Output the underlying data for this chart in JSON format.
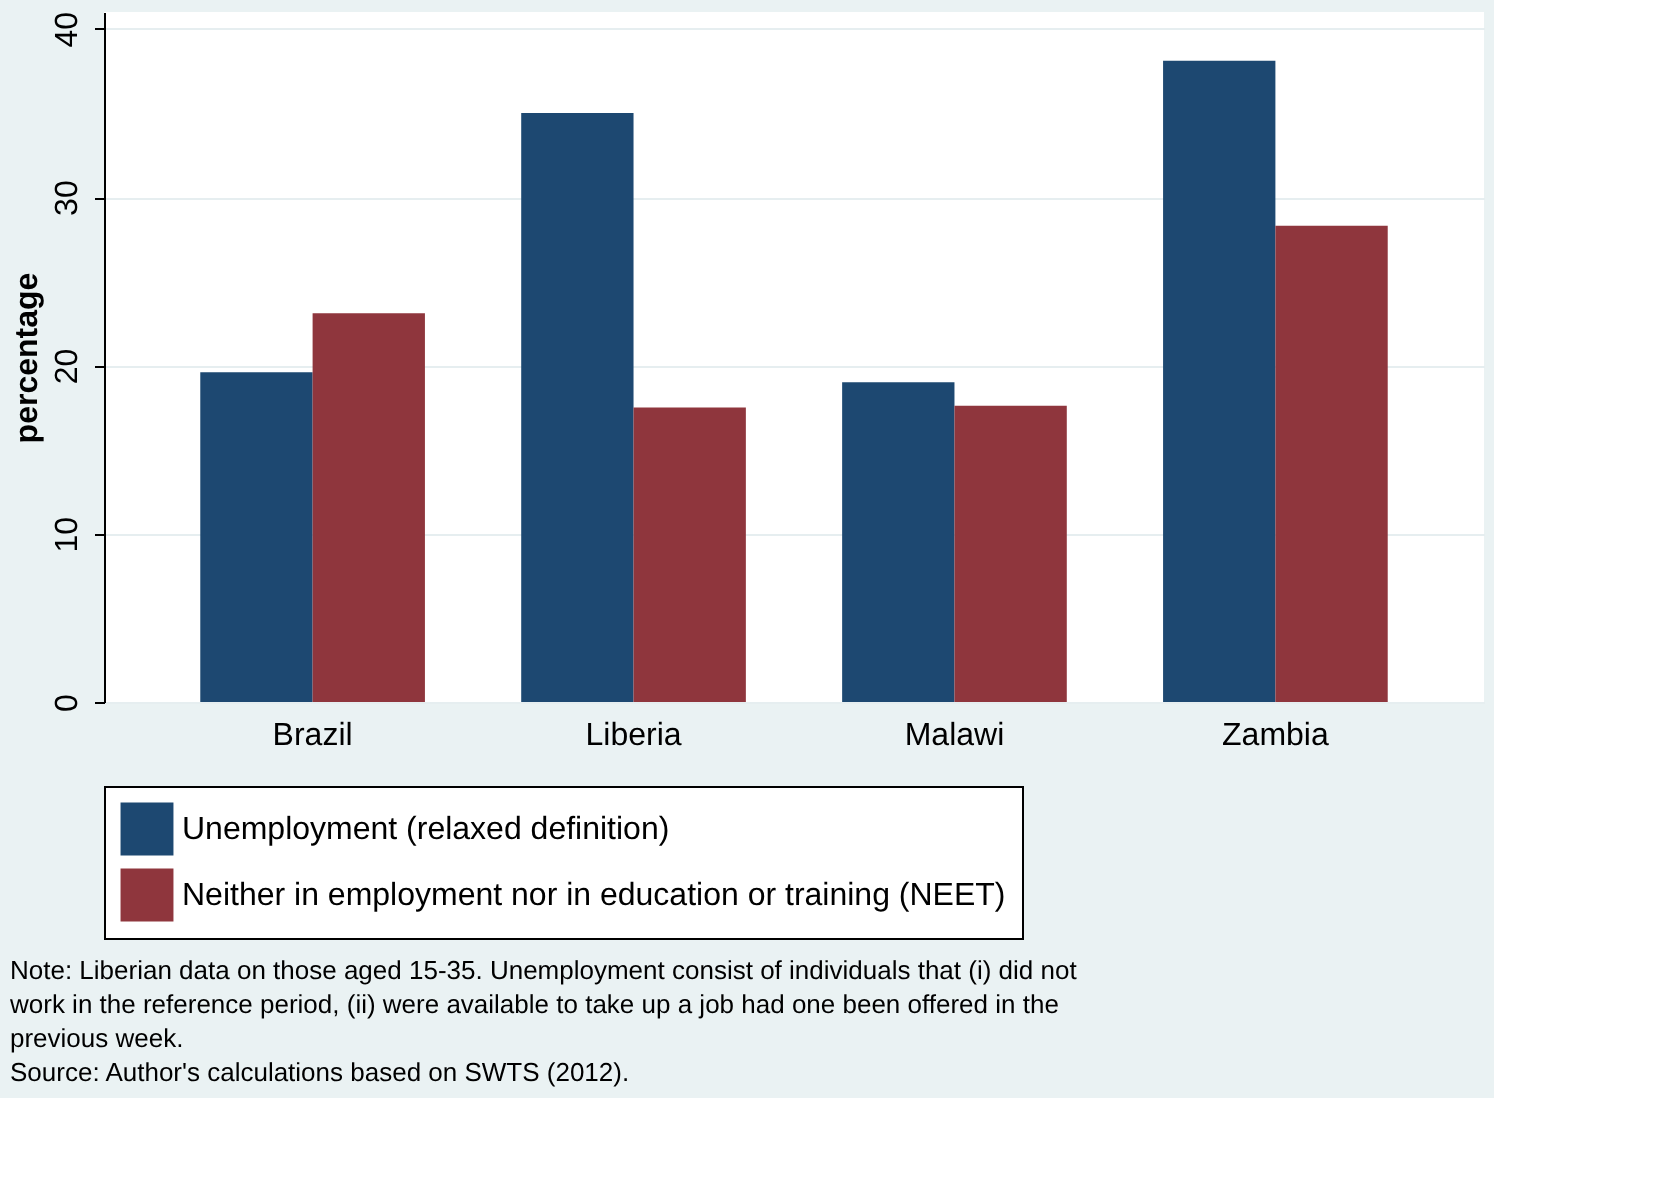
{
  "chart_data": {
    "type": "bar",
    "ylabel": "percentage",
    "categories": [
      "Brazil",
      "Liberia",
      "Malawi",
      "Zambia"
    ],
    "series": [
      {
        "name": "Unemployment (relaxed definition)",
        "color": "#1d4871",
        "values": [
          19.6,
          35.0,
          19.0,
          38.1
        ]
      },
      {
        "name": "Neither in employment nor in education or training (NEET)",
        "color": "#8f363d",
        "values": [
          23.1,
          17.5,
          17.6,
          28.3
        ]
      }
    ],
    "ylim": [
      0,
      41
    ],
    "yticks": [
      0,
      10,
      20,
      30,
      40
    ],
    "grid": "y",
    "legend": "bottom",
    "annotations": [
      "Note: Liberian data on those aged 15-35. Unemployment consist of individuals that (i) did not work in the reference period, (ii) were available to take up a job had one been offered in the previous week.",
      "Source: Author's calculations based on SWTS (2012)."
    ]
  }
}
